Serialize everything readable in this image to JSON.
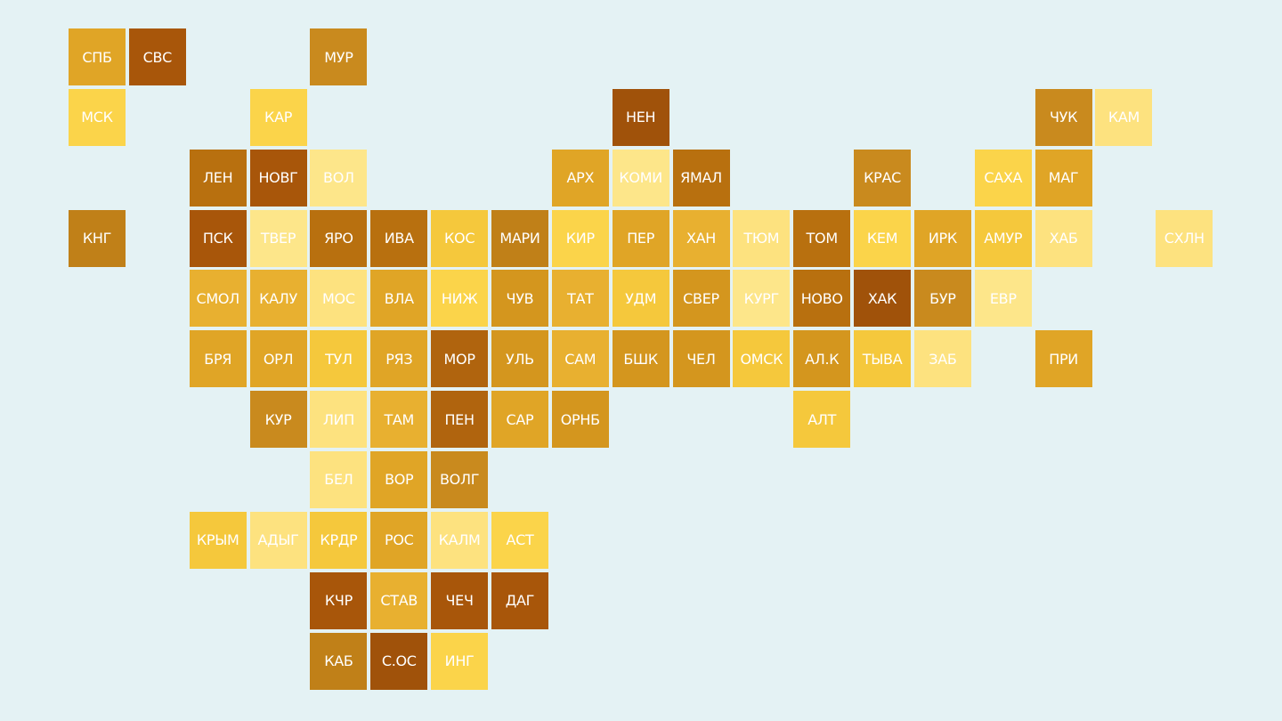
{
  "rows": [
    [
      {
        "label": "СПБ",
        "color": "#e0a526"
      },
      {
        "label": "СВС",
        "color": "#a8560a"
      },
      null,
      null,
      {
        "label": "МУР",
        "color": "#c98a1e"
      }
    ],
    [
      {
        "label": "МСК",
        "color": "#fbd44a"
      },
      null,
      null,
      {
        "label": "КАР",
        "color": "#fbd44a"
      },
      null,
      null,
      null,
      null,
      null,
      {
        "label": "НЕН",
        "color": "#a0520a"
      },
      null,
      null,
      null,
      null,
      null,
      null,
      {
        "label": "ЧУК",
        "color": "#c98a1e"
      },
      {
        "label": "КАМ",
        "color": "#fde27f"
      }
    ],
    [
      null,
      null,
      {
        "label": "ЛЕН",
        "color": "#b8700f"
      },
      {
        "label": "НОВГ",
        "color": "#a8560a"
      },
      {
        "label": "ВОЛ",
        "color": "#fde68a"
      },
      null,
      null,
      null,
      {
        "label": "АРХ",
        "color": "#e0a526"
      },
      {
        "label": "КОМИ",
        "color": "#fde68a"
      },
      {
        "label": "ЯМАЛ",
        "color": "#b8700f"
      },
      null,
      null,
      {
        "label": "КРАС",
        "color": "#c98a1e"
      },
      null,
      {
        "label": "САХА",
        "color": "#fbd44a"
      },
      {
        "label": "МАГ",
        "color": "#e0a526"
      }
    ],
    [
      {
        "label": "КНГ",
        "color": "#c08018"
      },
      null,
      {
        "label": "ПСК",
        "color": "#a8560a"
      },
      {
        "label": "ТВЕР",
        "color": "#fde68a"
      },
      {
        "label": "ЯРО",
        "color": "#b8700f"
      },
      {
        "label": "ИВА",
        "color": "#b8700f"
      },
      {
        "label": "КОС",
        "color": "#f5c83c"
      },
      {
        "label": "МАРИ",
        "color": "#c08018"
      },
      {
        "label": "КИР",
        "color": "#fbd44a"
      },
      {
        "label": "ПЕР",
        "color": "#e0a526"
      },
      {
        "label": "ХАН",
        "color": "#e8b030"
      },
      {
        "label": "ТЮМ",
        "color": "#fde27f"
      },
      {
        "label": "ТОМ",
        "color": "#b8700f"
      },
      {
        "label": "КЕМ",
        "color": "#fbd44a"
      },
      {
        "label": "ИРК",
        "color": "#e0a526"
      },
      {
        "label": "АМУР",
        "color": "#f5c83c"
      },
      {
        "label": "ХАБ",
        "color": "#fde27f"
      },
      null,
      {
        "label": "СХЛН",
        "color": "#fde27f"
      }
    ],
    [
      null,
      null,
      {
        "label": "СМОЛ",
        "color": "#e8b030"
      },
      {
        "label": "КАЛУ",
        "color": "#e8b030"
      },
      {
        "label": "МОС",
        "color": "#fde27f"
      },
      {
        "label": "ВЛА",
        "color": "#e0a526"
      },
      {
        "label": "НИЖ",
        "color": "#fbd44a"
      },
      {
        "label": "ЧУВ",
        "color": "#d4961e"
      },
      {
        "label": "ТАТ",
        "color": "#e8b030"
      },
      {
        "label": "УДМ",
        "color": "#f5c83c"
      },
      {
        "label": "СВЕР",
        "color": "#d4961e"
      },
      {
        "label": "КУРГ",
        "color": "#fde68a"
      },
      {
        "label": "НОВО",
        "color": "#b8700f"
      },
      {
        "label": "ХАК",
        "color": "#a0520a"
      },
      {
        "label": "БУР",
        "color": "#c98a1e"
      },
      {
        "label": "ЕВР",
        "color": "#fde68a"
      }
    ],
    [
      null,
      null,
      {
        "label": "БРЯ",
        "color": "#e0a526"
      },
      {
        "label": "ОРЛ",
        "color": "#e0a526"
      },
      {
        "label": "ТУЛ",
        "color": "#f5c83c"
      },
      {
        "label": "РЯЗ",
        "color": "#e0a526"
      },
      {
        "label": "МОР",
        "color": "#b0640e"
      },
      {
        "label": "УЛЬ",
        "color": "#d4961e"
      },
      {
        "label": "САМ",
        "color": "#e8b030"
      },
      {
        "label": "БШК",
        "color": "#d4961e"
      },
      {
        "label": "ЧЕЛ",
        "color": "#d4961e"
      },
      {
        "label": "ОМСК",
        "color": "#f5c83c"
      },
      {
        "label": "АЛ.К",
        "color": "#d4961e"
      },
      {
        "label": "ТЫВА",
        "color": "#f5c83c"
      },
      {
        "label": "ЗАБ",
        "color": "#fde27f"
      },
      null,
      {
        "label": "ПРИ",
        "color": "#e0a526"
      }
    ],
    [
      null,
      null,
      null,
      {
        "label": "КУР",
        "color": "#c98a1e"
      },
      {
        "label": "ЛИП",
        "color": "#fde27f"
      },
      {
        "label": "ТАМ",
        "color": "#e8b030"
      },
      {
        "label": "ПЕН",
        "color": "#b0640e"
      },
      {
        "label": "САР",
        "color": "#e0a526"
      },
      {
        "label": "ОРНБ",
        "color": "#d4961e"
      },
      null,
      null,
      null,
      {
        "label": "АЛТ",
        "color": "#f5c83c"
      }
    ],
    [
      null,
      null,
      null,
      null,
      {
        "label": "БЕЛ",
        "color": "#fde27f"
      },
      {
        "label": "ВОР",
        "color": "#e0a526"
      },
      {
        "label": "ВОЛГ",
        "color": "#c98a1e"
      }
    ],
    [
      null,
      null,
      {
        "label": "КРЫМ",
        "color": "#f5c83c"
      },
      {
        "label": "АДЫГ",
        "color": "#fde27f"
      },
      {
        "label": "КРДР",
        "color": "#f5c83c"
      },
      {
        "label": "РОС",
        "color": "#e0a526"
      },
      {
        "label": "КАЛМ",
        "color": "#fde27f"
      },
      {
        "label": "АСТ",
        "color": "#fbd44a"
      }
    ],
    [
      null,
      null,
      null,
      null,
      {
        "label": "КЧР",
        "color": "#a8560a"
      },
      {
        "label": "СТАВ",
        "color": "#e8b030"
      },
      {
        "label": "ЧЕЧ",
        "color": "#a8560a"
      },
      {
        "label": "ДАГ",
        "color": "#a8560a"
      }
    ],
    [
      null,
      null,
      null,
      null,
      {
        "label": "КАБ",
        "color": "#c08018"
      },
      {
        "label": "С.ОС",
        "color": "#a0520a"
      },
      {
        "label": "ИНГ",
        "color": "#fbd44a"
      }
    ]
  ]
}
